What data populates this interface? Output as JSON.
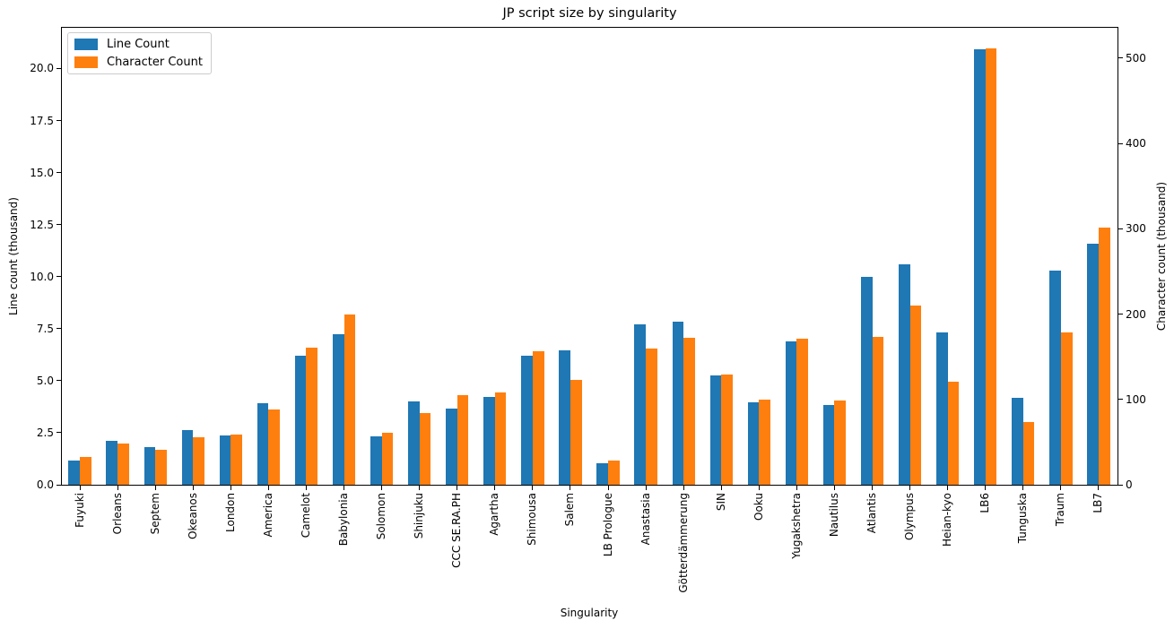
{
  "title": "JP script size by singularity",
  "legend": {
    "items": [
      {
        "label": "Line Count",
        "color": "#1f77b4"
      },
      {
        "label": "Character Count",
        "color": "#ff7f0e"
      }
    ]
  },
  "chart_data": {
    "type": "bar",
    "title": "JP script size by singularity",
    "xlabel": "Singularity",
    "ylabel_left": "Line count (thousand)",
    "ylabel_right": "Character count (thousand)",
    "grid": false,
    "legend_position": "upper left",
    "background": "#ffffff",
    "spine_color": "#000000",
    "categories": [
      "Fuyuki",
      "Orleans",
      "Septem",
      "Okeanos",
      "London",
      "America",
      "Camelot",
      "Babylonia",
      "Solomon",
      "Shinjuku",
      "CCC SE.RA.PH",
      "Agartha",
      "Shimousa",
      "Salem",
      "LB Prologue",
      "Anastasia",
      "Götterdämmerung",
      "SIN",
      "Ooku",
      "Yugakshetra",
      "Nautilus",
      "Atlantis",
      "Olympus",
      "Heian-kyo",
      "LB6",
      "Tunguska",
      "Traum",
      "LB7"
    ],
    "series": [
      {
        "name": "Line Count",
        "axis": "left",
        "unit": "thousand lines",
        "color": "#1f77b4",
        "values": [
          1.15,
          2.1,
          1.8,
          2.62,
          2.37,
          3.9,
          6.21,
          7.25,
          2.33,
          4.0,
          3.68,
          4.2,
          6.22,
          6.47,
          1.04,
          7.7,
          7.82,
          5.25,
          3.96,
          6.9,
          3.82,
          10.0,
          10.58,
          7.32,
          20.93,
          4.16,
          10.28,
          11.58
        ]
      },
      {
        "name": "Character Count",
        "axis": "right",
        "unit": "thousand characters",
        "color": "#ff7f0e",
        "values": [
          33,
          48,
          41,
          56,
          59,
          88,
          161,
          200,
          61,
          84,
          105,
          108,
          156,
          123,
          28,
          160,
          172,
          129,
          100,
          171,
          99,
          173,
          210,
          121,
          511,
          74,
          178,
          301
        ]
      }
    ],
    "left_axis": {
      "min": 0,
      "max": 22.0,
      "tick_labels": [
        "0.0",
        "2.5",
        "5.0",
        "7.5",
        "10.0",
        "12.5",
        "15.0",
        "17.5",
        "20.0"
      ]
    },
    "right_axis": {
      "min": 0,
      "max": 536.5,
      "tick_labels": [
        "0",
        "100",
        "200",
        "300",
        "400",
        "500"
      ]
    }
  }
}
